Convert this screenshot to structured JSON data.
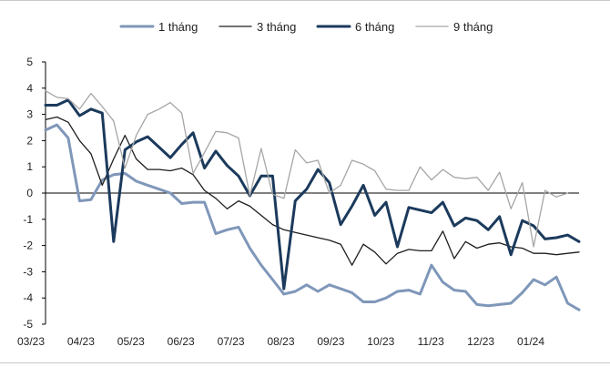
{
  "chart_data": {
    "type": "line",
    "title": "",
    "xlabel": "",
    "ylabel": "",
    "ylim": [
      -5,
      5
    ],
    "yticks": [
      5,
      4,
      3,
      2,
      1,
      0,
      -1,
      -2,
      -3,
      -4,
      -5
    ],
    "categories_label_ticks": [
      "03/23",
      "04/23",
      "05/23",
      "06/23",
      "07/23",
      "08/23",
      "09/23",
      "10/23",
      "11/23",
      "12/23",
      "01/24"
    ],
    "legend_position": "top",
    "grid": false,
    "series": [
      {
        "name": "1 tháng",
        "color": "#7f97b9",
        "width": 3,
        "values": [
          2.4,
          2.6,
          2.1,
          -0.3,
          -0.25,
          0.5,
          0.7,
          0.75,
          0.45,
          0.3,
          0.15,
          0.0,
          -0.4,
          -0.35,
          -0.35,
          -1.55,
          -1.4,
          -1.3,
          -2.1,
          -2.75,
          -3.3,
          -3.85,
          -3.75,
          -3.5,
          -3.75,
          -3.5,
          -3.65,
          -3.8,
          -4.15,
          -4.15,
          -4.0,
          -3.75,
          -3.7,
          -3.85,
          -2.75,
          -3.4,
          -3.7,
          -3.75,
          -4.25,
          -4.3,
          -4.25,
          -4.2,
          -3.8,
          -3.3,
          -3.5,
          -3.2,
          -4.2,
          -4.45
        ]
      },
      {
        "name": "3 tháng",
        "color": "#1e1e1e",
        "width": 1.3,
        "values": [
          2.8,
          2.9,
          2.7,
          2.0,
          1.5,
          0.3,
          1.3,
          2.2,
          1.3,
          0.9,
          0.9,
          0.85,
          0.95,
          0.7,
          0.1,
          -0.2,
          -0.6,
          -0.3,
          -0.5,
          -0.85,
          -1.2,
          -1.4,
          -1.5,
          -1.6,
          -1.7,
          -1.8,
          -1.95,
          -2.75,
          -1.95,
          -2.25,
          -2.7,
          -2.3,
          -2.15,
          -2.2,
          -2.2,
          -1.45,
          -2.5,
          -1.85,
          -2.1,
          -1.95,
          -1.9,
          -2.05,
          -2.1,
          -2.3,
          -2.3,
          -2.35,
          -2.3,
          -2.25
        ]
      },
      {
        "name": "6 tháng",
        "color": "#1b3a5c",
        "width": 3,
        "values": [
          3.35,
          3.35,
          3.55,
          2.95,
          3.2,
          3.05,
          -1.85,
          1.65,
          1.95,
          2.15,
          1.75,
          1.35,
          1.85,
          2.3,
          0.95,
          1.6,
          1.05,
          0.65,
          -0.1,
          0.65,
          0.65,
          -3.65,
          -0.3,
          0.15,
          0.9,
          0.4,
          -1.2,
          -0.5,
          0.3,
          -0.85,
          -0.35,
          -2.05,
          -0.55,
          -0.65,
          -0.75,
          -0.35,
          -1.25,
          -0.95,
          -1.05,
          -1.4,
          -0.9,
          -2.35,
          -1.05,
          -1.25,
          -1.75,
          -1.7,
          -1.6,
          -1.85
        ]
      },
      {
        "name": "9 tháng",
        "color": "#a6a6a6",
        "width": 1.3,
        "values": [
          3.9,
          3.65,
          3.6,
          3.2,
          3.8,
          3.3,
          2.75,
          0.95,
          2.2,
          3.0,
          3.2,
          3.45,
          3.05,
          0.75,
          1.55,
          2.35,
          2.3,
          2.1,
          -0.1,
          1.7,
          -0.05,
          -0.2,
          1.65,
          1.15,
          1.25,
          0.0,
          0.3,
          1.25,
          1.1,
          0.85,
          0.15,
          0.1,
          0.1,
          1.0,
          0.5,
          0.9,
          0.6,
          0.55,
          0.6,
          0.1,
          0.8,
          -0.6,
          0.4,
          -2.05,
          0.1,
          -0.15,
          0.0,
          null
        ]
      }
    ]
  }
}
